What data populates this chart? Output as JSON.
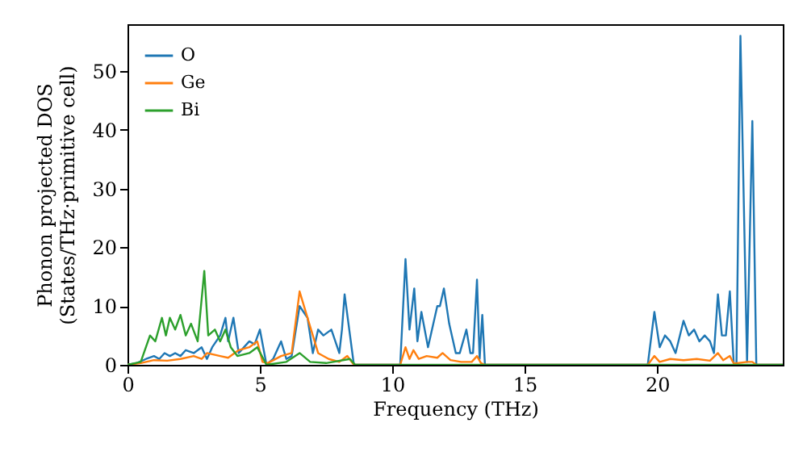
{
  "chart_data": {
    "type": "line",
    "xlabel": "Frequency (THz)",
    "ylabel": "Phonon projected DOS\n(States/THz·primitive cell)",
    "xlim": [
      0,
      24.75
    ],
    "ylim": [
      0,
      58
    ],
    "xticks": [
      0,
      5,
      10,
      15,
      20
    ],
    "yticks": [
      0,
      10,
      20,
      30,
      40,
      50
    ],
    "legend": "top left",
    "grid": false,
    "series": [
      {
        "name": "O",
        "color": "#1f77b4",
        "x": [
          0,
          0.35,
          0.7,
          1.0,
          1.2,
          1.4,
          1.6,
          1.8,
          2.0,
          2.2,
          2.5,
          2.8,
          3.0,
          3.2,
          3.5,
          3.7,
          3.8,
          4.0,
          4.2,
          4.4,
          4.6,
          4.8,
          5.0,
          5.25,
          5.5,
          5.8,
          6.0,
          6.2,
          6.5,
          6.8,
          7.0,
          7.2,
          7.4,
          7.7,
          8.0,
          8.1,
          8.2,
          8.55,
          10.3,
          10.5,
          10.65,
          10.83,
          10.95,
          11.1,
          11.35,
          11.7,
          11.8,
          11.95,
          12.15,
          12.4,
          12.55,
          12.8,
          12.95,
          13.05,
          13.2,
          13.3,
          13.4,
          13.5,
          19.65,
          19.9,
          20.1,
          20.3,
          20.5,
          20.7,
          21.0,
          21.2,
          21.4,
          21.6,
          21.8,
          22.0,
          22.15,
          22.3,
          22.45,
          22.6,
          22.75,
          22.9,
          23.0,
          23.15,
          23.4,
          23.6,
          23.75,
          24.75
        ],
        "values": [
          0,
          0.3,
          1,
          1.5,
          1,
          2,
          1.5,
          2,
          1.5,
          2.5,
          2,
          3,
          1,
          3,
          5,
          8,
          4,
          8,
          2,
          3,
          4,
          3.5,
          6,
          0,
          1,
          4,
          1,
          1.5,
          10,
          8,
          2,
          6,
          5,
          6,
          2,
          6,
          12,
          0,
          0,
          18,
          6,
          13,
          4,
          9,
          3,
          10,
          10,
          13,
          7,
          2,
          2,
          6,
          2,
          2,
          14.5,
          1,
          8.5,
          0,
          0,
          9,
          3,
          5,
          4,
          2,
          7.5,
          5,
          6,
          4,
          5,
          4,
          2,
          12,
          5,
          5,
          12.5,
          0,
          0,
          56,
          0.5,
          41.5,
          0,
          0
        ]
      },
      {
        "name": "Ge",
        "color": "#ff7f0e",
        "x": [
          0,
          0.5,
          1.0,
          1.5,
          2.0,
          2.5,
          2.8,
          3.0,
          3.5,
          3.8,
          4.2,
          4.6,
          4.9,
          5.1,
          5.3,
          5.8,
          6.2,
          6.5,
          6.8,
          7.2,
          7.6,
          8.0,
          8.3,
          8.55,
          10.3,
          10.5,
          10.65,
          10.8,
          11.0,
          11.3,
          11.7,
          11.9,
          12.2,
          12.6,
          13.0,
          13.2,
          13.35,
          13.5,
          19.65,
          19.9,
          20.1,
          20.5,
          21.0,
          21.5,
          22.0,
          22.3,
          22.5,
          22.75,
          22.9,
          23.4,
          23.6,
          23.75,
          24.75
        ],
        "values": [
          0,
          0.3,
          0.8,
          0.7,
          1,
          1.5,
          1,
          2,
          1.5,
          1.2,
          2.5,
          3,
          4,
          0.5,
          0.3,
          1.5,
          2,
          12.5,
          8,
          2,
          1,
          0.5,
          1.5,
          0,
          0,
          3,
          1,
          2.5,
          1,
          1.5,
          1.2,
          2,
          0.8,
          0.5,
          0.5,
          1.5,
          0.3,
          0,
          0,
          1.5,
          0.5,
          1,
          0.8,
          1,
          0.7,
          2,
          0.8,
          1.5,
          0.2,
          0.5,
          0.5,
          0,
          0
        ]
      },
      {
        "name": "Bi",
        "color": "#2ca02c",
        "x": [
          0,
          0.5,
          0.85,
          1.05,
          1.3,
          1.45,
          1.6,
          1.8,
          2.0,
          2.2,
          2.4,
          2.65,
          2.9,
          3.05,
          3.3,
          3.5,
          3.7,
          3.9,
          4.15,
          4.6,
          4.9,
          5.25,
          6.0,
          6.5,
          6.9,
          7.5,
          8.4,
          8.6,
          24.75
        ],
        "values": [
          0,
          0.5,
          5,
          4,
          8,
          5,
          8,
          6,
          8.5,
          5,
          7,
          4,
          16,
          5,
          6,
          4,
          6,
          3,
          1.5,
          2,
          3,
          0,
          0.5,
          2,
          0.5,
          0.3,
          1,
          0,
          0
        ]
      }
    ]
  }
}
